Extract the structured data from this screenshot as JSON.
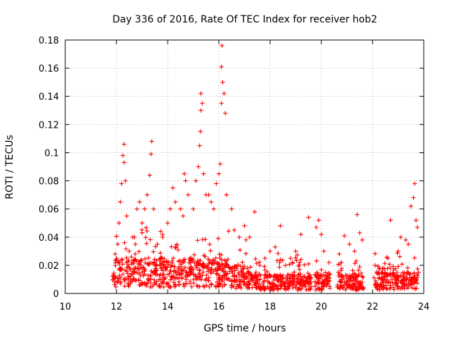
{
  "chart_data": {
    "type": "scatter",
    "title": "Day 336 of 2016, Rate Of TEC Index for receiver hob2",
    "xlabel": "GPS time / hours",
    "ylabel": "ROTI / TECUs",
    "xlim": [
      10,
      24
    ],
    "ylim": [
      0,
      0.18
    ],
    "x_ticks": [
      "10",
      "12",
      "14",
      "16",
      "18",
      "20",
      "22",
      "24"
    ],
    "y_ticks": [
      "0",
      "0.02",
      "0.04",
      "0.06",
      "0.08",
      "0.1",
      "0.12",
      "0.14",
      "0.16",
      "0.18"
    ],
    "grid": true,
    "marker": "plus",
    "color": "#ff0000",
    "series": [
      {
        "name": "ROTI",
        "points": [
          [
            11.9,
            0.012
          ],
          [
            11.95,
            0.028
          ],
          [
            12.05,
            0.035
          ],
          [
            12.1,
            0.05
          ],
          [
            12.15,
            0.065
          ],
          [
            12.2,
            0.078
          ],
          [
            12.25,
            0.098
          ],
          [
            12.3,
            0.106
          ],
          [
            12.3,
            0.093
          ],
          [
            12.35,
            0.08
          ],
          [
            12.4,
            0.055
          ],
          [
            12.5,
            0.03
          ],
          [
            12.6,
            0.022
          ],
          [
            12.7,
            0.04
          ],
          [
            12.8,
            0.06
          ],
          [
            12.9,
            0.065
          ],
          [
            13.0,
            0.05
          ],
          [
            13.1,
            0.06
          ],
          [
            13.2,
            0.07
          ],
          [
            13.3,
            0.084
          ],
          [
            13.35,
            0.099
          ],
          [
            13.38,
            0.108
          ],
          [
            13.45,
            0.06
          ],
          [
            13.6,
            0.035
          ],
          [
            13.8,
            0.04
          ],
          [
            14.0,
            0.05
          ],
          [
            14.1,
            0.06
          ],
          [
            14.2,
            0.075
          ],
          [
            14.3,
            0.065
          ],
          [
            14.5,
            0.06
          ],
          [
            14.6,
            0.055
          ],
          [
            14.65,
            0.085
          ],
          [
            14.7,
            0.08
          ],
          [
            14.8,
            0.07
          ],
          [
            15.0,
            0.06
          ],
          [
            15.1,
            0.08
          ],
          [
            15.2,
            0.09
          ],
          [
            15.25,
            0.105
          ],
          [
            15.28,
            0.115
          ],
          [
            15.3,
            0.13
          ],
          [
            15.35,
            0.135
          ],
          [
            15.3,
            0.142
          ],
          [
            15.4,
            0.085
          ],
          [
            15.5,
            0.07
          ],
          [
            15.6,
            0.07
          ],
          [
            15.7,
            0.065
          ],
          [
            15.8,
            0.06
          ],
          [
            15.9,
            0.078
          ],
          [
            16.0,
            0.085
          ],
          [
            16.05,
            0.092
          ],
          [
            16.1,
            0.135
          ],
          [
            16.15,
            0.15
          ],
          [
            16.1,
            0.161
          ],
          [
            16.12,
            0.176
          ],
          [
            16.2,
            0.142
          ],
          [
            16.25,
            0.128
          ],
          [
            16.3,
            0.07
          ],
          [
            16.5,
            0.06
          ],
          [
            16.6,
            0.045
          ],
          [
            16.8,
            0.04
          ],
          [
            17.0,
            0.048
          ],
          [
            17.2,
            0.04
          ],
          [
            17.4,
            0.058
          ],
          [
            17.6,
            0.02
          ],
          [
            17.8,
            0.025
          ],
          [
            18.0,
            0.03
          ],
          [
            18.2,
            0.033
          ],
          [
            18.4,
            0.048
          ],
          [
            18.6,
            0.02
          ],
          [
            18.8,
            0.025
          ],
          [
            19.0,
            0.03
          ],
          [
            19.2,
            0.042
          ],
          [
            19.5,
            0.054
          ],
          [
            19.8,
            0.047
          ],
          [
            19.9,
            0.052
          ],
          [
            20.0,
            0.042
          ],
          [
            20.1,
            0.03
          ],
          [
            20.3,
            0.022
          ],
          [
            20.7,
            0.028
          ],
          [
            20.9,
            0.041
          ],
          [
            21.1,
            0.035
          ],
          [
            21.3,
            0.03
          ],
          [
            21.4,
            0.056
          ],
          [
            21.5,
            0.043
          ],
          [
            21.6,
            0.038
          ],
          [
            22.1,
            0.02
          ],
          [
            22.4,
            0.018
          ],
          [
            22.6,
            0.025
          ],
          [
            22.7,
            0.052
          ],
          [
            23.0,
            0.03
          ],
          [
            23.1,
            0.04
          ],
          [
            23.3,
            0.038
          ],
          [
            23.4,
            0.035
          ],
          [
            23.5,
            0.062
          ],
          [
            23.6,
            0.068
          ],
          [
            23.65,
            0.078
          ],
          [
            23.7,
            0.052
          ],
          [
            23.75,
            0.047
          ],
          [
            23.8,
            0.015
          ]
        ]
      }
    ],
    "dense_segments": [
      {
        "x": [
          11.85,
          16.4
        ],
        "median": 0.015,
        "peak": 0.04
      },
      {
        "x": [
          16.4,
          17.2
        ],
        "median": 0.012,
        "peak": 0.035
      },
      {
        "x": [
          17.2,
          19.6
        ],
        "median": 0.008,
        "peak": 0.025
      },
      {
        "x": [
          19.75,
          20.35
        ],
        "median": 0.008,
        "peak": 0.02
      },
      {
        "x": [
          20.6,
          21.65
        ],
        "median": 0.008,
        "peak": 0.022
      },
      {
        "x": [
          22.05,
          23.8
        ],
        "median": 0.009,
        "peak": 0.025
      }
    ]
  }
}
